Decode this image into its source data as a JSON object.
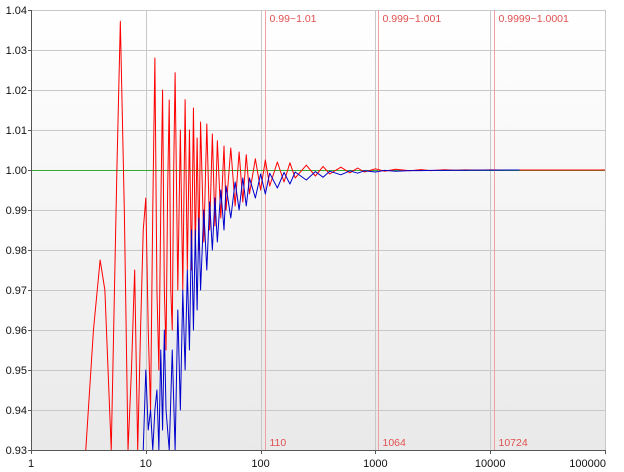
{
  "colors": {
    "background": "#ffffff",
    "plot_gradient_top": "#ffffff",
    "plot_gradient_bottom": "#e9e9e9",
    "grid": "#c8c8c8",
    "axis": "#555555",
    "reference_line": "#33aa33",
    "marker_line": "#f0a0a0",
    "marker_text": "#e05050",
    "series_red": "#ff0000",
    "series_blue": "#0000cc"
  },
  "chart_data": {
    "type": "line",
    "title": "",
    "xlabel": "",
    "ylabel": "",
    "x_scale": "log",
    "xlim": [
      1,
      100000
    ],
    "ylim": [
      0.93,
      1.04
    ],
    "grid": true,
    "x_ticks": [
      "1",
      "10",
      "100",
      "1000",
      "10000",
      "100000"
    ],
    "x_tick_values": [
      1,
      10,
      100,
      1000,
      10000,
      100000
    ],
    "y_ticks": [
      "0.93",
      "0.94",
      "0.95",
      "0.96",
      "0.97",
      "0.98",
      "0.99",
      "1.00",
      "1.01",
      "1.02",
      "1.03",
      "1.04"
    ],
    "y_tick_values": [
      0.93,
      0.94,
      0.95,
      0.96,
      0.97,
      0.98,
      0.99,
      1.0,
      1.01,
      1.02,
      1.03,
      1.04
    ],
    "reference_line": {
      "y": 1.0
    },
    "markers": [
      {
        "x": 110,
        "top_label": "0.99~1.01",
        "bottom_label": "110"
      },
      {
        "x": 1064,
        "top_label": "0.999~1.001",
        "bottom_label": "1064"
      },
      {
        "x": 10724,
        "top_label": "0.9999~1.0001",
        "bottom_label": "10724"
      }
    ],
    "series": [
      {
        "color": "#ff0000",
        "x": [
          3,
          3.5,
          4,
          4.4,
          5,
          5.6,
          6,
          6.5,
          7,
          7.5,
          8,
          8.5,
          9,
          9.5,
          10,
          10.5,
          11,
          11.5,
          12,
          12.5,
          13,
          13.5,
          14,
          14.5,
          15,
          15.5,
          16,
          16.5,
          17,
          17.5,
          18,
          19,
          20,
          21,
          22,
          23,
          24,
          25,
          26,
          27,
          28,
          29,
          30,
          32,
          34,
          36,
          38,
          40,
          42,
          45,
          48,
          50,
          55,
          60,
          65,
          70,
          75,
          80,
          90,
          100,
          110,
          120,
          140,
          160,
          180,
          200,
          250,
          300,
          350,
          400,
          500,
          600,
          700,
          800,
          1000,
          1200,
          1500,
          2000,
          2500,
          3000,
          4000,
          5000,
          6000,
          8000,
          10000,
          12000,
          15000,
          20000,
          30000,
          50000,
          100000
        ],
        "y": [
          0.93,
          0.96,
          0.9775,
          0.97,
          0.93,
          1.0,
          1.0372,
          0.99,
          0.93,
          0.95,
          0.975,
          0.93,
          0.96,
          0.985,
          0.993,
          0.96,
          0.94,
          0.99,
          1.028,
          0.97,
          0.95,
          0.99,
          1.02,
          0.97,
          0.955,
          0.995,
          1.0175,
          0.97,
          0.96,
          1.0,
          1.0243,
          0.97,
          1.01,
          0.97,
          1.0176,
          0.975,
          1.01,
          0.975,
          1.0155,
          0.98,
          1.008,
          0.98,
          1.012,
          0.982,
          1.0115,
          0.985,
          1.009,
          0.986,
          1.0073,
          0.988,
          1.006,
          0.99,
          1.0055,
          0.991,
          1.0045,
          0.992,
          1.0038,
          0.994,
          1.0028,
          0.995,
          1.0025,
          0.996,
          1.002,
          0.997,
          1.0018,
          0.998,
          1.0012,
          0.9985,
          1.0009,
          0.999,
          1.0007,
          0.9993,
          1.0005,
          0.9995,
          1.0003,
          0.9997,
          1.0002,
          0.9998,
          1.0001,
          0.99985,
          1.00006,
          0.99993,
          1.00004,
          0.99997,
          1.00002,
          0.99999,
          1.00001,
          1.0,
          1.0,
          1.0,
          1.0
        ]
      },
      {
        "color": "#0000cc",
        "x": [
          9.5,
          10,
          10.5,
          11,
          11.5,
          12,
          12.5,
          13,
          13.5,
          14,
          14.5,
          15,
          16,
          17,
          18,
          19,
          20,
          21,
          22,
          23,
          24,
          25,
          26,
          27,
          28,
          29,
          30,
          32,
          34,
          36,
          38,
          40,
          42,
          45,
          48,
          50,
          55,
          60,
          65,
          70,
          75,
          80,
          90,
          100,
          110,
          120,
          140,
          160,
          180,
          200,
          250,
          300,
          350,
          400,
          500,
          600,
          700,
          800,
          1000,
          1200,
          1500,
          2000,
          2500,
          3000,
          4000,
          5000,
          6000,
          8000,
          10000,
          12000,
          15000,
          18000
        ],
        "y": [
          0.93,
          0.95,
          0.935,
          0.94,
          0.93,
          0.94,
          0.945,
          0.93,
          0.955,
          0.935,
          0.96,
          0.94,
          0.93,
          0.955,
          0.93,
          0.965,
          0.94,
          0.97,
          0.95,
          0.975,
          0.955,
          0.985,
          0.96,
          0.985,
          0.965,
          0.988,
          0.97,
          0.99,
          0.975,
          0.992,
          0.98,
          0.993,
          0.982,
          0.995,
          0.985,
          0.996,
          0.988,
          0.997,
          0.99,
          0.998,
          0.991,
          0.998,
          0.993,
          0.999,
          0.994,
          0.9992,
          0.9955,
          0.9994,
          0.9965,
          0.9995,
          0.9975,
          0.9996,
          0.9982,
          0.9997,
          0.9988,
          0.9998,
          0.9992,
          0.9998,
          0.9995,
          0.9999,
          0.9997,
          0.99985,
          0.99985,
          0.9999,
          0.99992,
          0.99994,
          0.99995,
          0.99996,
          0.99997,
          0.99998,
          0.99999,
          1.0
        ]
      }
    ]
  }
}
